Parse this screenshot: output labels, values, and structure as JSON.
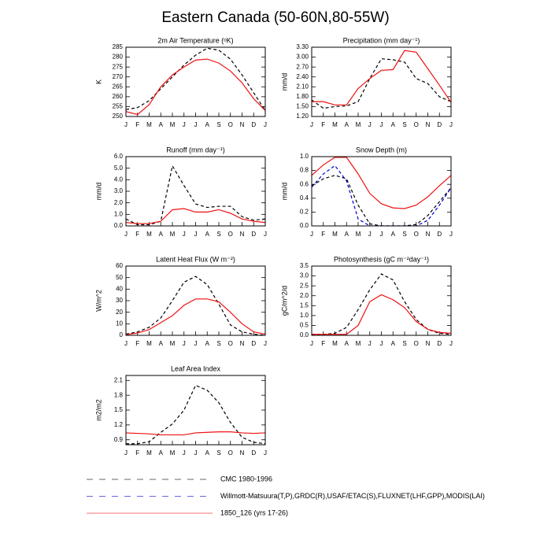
{
  "title": "Eastern Canada (50-60N,80-55W)",
  "legend": [
    {
      "name": "CMC 1980-1996",
      "color": "#000000",
      "dashed": true
    },
    {
      "name": "Willmott-Matsuura(T,P),GRDC(R),USAF/ETAC(S),FLUXNET(LHF,GPP),MODIS(LAI)",
      "color": "#0000cc",
      "dashed": true
    },
    {
      "name": "1850_126 (yrs 17-26)",
      "color": "#ee1111",
      "dashed": false
    }
  ],
  "chart_data": [
    {
      "type": "line",
      "title": "2m Air Temperature (ᵒK)",
      "y_label": "K",
      "categories": [
        "J",
        "F",
        "M",
        "A",
        "M",
        "J",
        "J",
        "A",
        "S",
        "O",
        "N",
        "D",
        "J"
      ],
      "ylim": [
        250,
        285
      ],
      "yticks": [
        250,
        255,
        260,
        265,
        270,
        275,
        280,
        285
      ],
      "series": [
        {
          "legend": 0,
          "values": [
            253.5,
            254.5,
            258,
            264,
            270,
            276,
            281,
            284.5,
            283.5,
            279,
            271,
            262,
            253
          ]
        },
        {
          "legend": 2,
          "values": [
            252.5,
            251,
            256,
            265,
            271,
            275,
            278.5,
            279,
            277,
            273,
            267,
            259,
            253
          ]
        }
      ]
    },
    {
      "type": "line",
      "title": "Precipitation (mm day⁻¹)",
      "y_label": "mm/d",
      "categories": [
        "J",
        "F",
        "M",
        "A",
        "M",
        "J",
        "J",
        "A",
        "S",
        "O",
        "N",
        "D",
        "J"
      ],
      "ylim": [
        1.2,
        3.3
      ],
      "yticks": [
        {
          "value": 1.2,
          "label": "1.20"
        },
        {
          "value": 1.5,
          "label": "1.50"
        },
        {
          "value": 1.8,
          "label": "1.80"
        },
        {
          "value": 2.1,
          "label": "2.10"
        },
        {
          "value": 2.4,
          "label": "2.40"
        },
        {
          "value": 2.7,
          "label": "2.70"
        },
        {
          "value": 3.0,
          "label": "3.00"
        },
        {
          "value": 3.3,
          "label": "3.30"
        }
      ],
      "series": [
        {
          "legend": 0,
          "values": [
            1.7,
            1.45,
            1.5,
            1.52,
            1.65,
            2.35,
            2.95,
            2.92,
            2.85,
            2.35,
            2.2,
            1.8,
            1.65
          ]
        },
        {
          "legend": 2,
          "values": [
            1.65,
            1.65,
            1.55,
            1.55,
            2.05,
            2.35,
            2.6,
            2.62,
            3.2,
            3.15,
            2.65,
            2.15,
            1.63
          ]
        }
      ]
    },
    {
      "type": "line",
      "title": "Runoff (mm day⁻¹)",
      "y_label": "mm/d",
      "categories": [
        "J",
        "F",
        "M",
        "A",
        "M",
        "J",
        "J",
        "A",
        "S",
        "O",
        "N",
        "D",
        "J"
      ],
      "ylim": [
        0,
        6
      ],
      "yticks": [
        {
          "value": 0,
          "label": "0.0"
        },
        {
          "value": 1,
          "label": "1.0"
        },
        {
          "value": 2,
          "label": "2.0"
        },
        {
          "value": 3,
          "label": "3.0"
        },
        {
          "value": 4,
          "label": "4.0"
        },
        {
          "value": 5,
          "label": "5.0"
        },
        {
          "value": 6,
          "label": "6.0"
        }
      ],
      "series": [
        {
          "legend": 0,
          "values": [
            0.6,
            0.1,
            0.1,
            0.4,
            5.2,
            3.5,
            1.9,
            1.6,
            1.7,
            1.7,
            0.8,
            0.5,
            0.6
          ]
        },
        {
          "legend": 2,
          "values": [
            0.3,
            0.2,
            0.2,
            0.4,
            1.4,
            1.5,
            1.2,
            1.2,
            1.4,
            1.1,
            0.6,
            0.4,
            0.3
          ]
        }
      ]
    },
    {
      "type": "line",
      "title": "Snow Depth (m)",
      "y_label": "mm/d",
      "categories": [
        "J",
        "F",
        "M",
        "A",
        "M",
        "J",
        "J",
        "A",
        "S",
        "O",
        "N",
        "D",
        "J"
      ],
      "ylim": [
        0,
        1
      ],
      "yticks": [
        {
          "value": 0,
          "label": "0.0"
        },
        {
          "value": 0.2,
          "label": "0.2"
        },
        {
          "value": 0.4,
          "label": "0.4"
        },
        {
          "value": 0.6,
          "label": "0.6"
        },
        {
          "value": 0.8,
          "label": "0.8"
        },
        {
          "value": 1,
          "label": "1.0"
        }
      ],
      "series": [
        {
          "legend": 0,
          "values": [
            0.58,
            0.68,
            0.73,
            0.68,
            0.3,
            0.03,
            0,
            0,
            0,
            0.02,
            0.15,
            0.35,
            0.55
          ]
        },
        {
          "legend": 1,
          "values": [
            0.56,
            0.75,
            0.87,
            0.65,
            0.1,
            0,
            0,
            0,
            0,
            0,
            0.08,
            0.3,
            0.55
          ]
        },
        {
          "legend": 2,
          "values": [
            0.73,
            0.88,
            0.99,
            0.99,
            0.75,
            0.47,
            0.32,
            0.26,
            0.25,
            0.3,
            0.42,
            0.58,
            0.73
          ]
        }
      ]
    },
    {
      "type": "line",
      "title": "Latent Heat Flux (W m⁻²)",
      "y_label": "W/m^2",
      "categories": [
        "J",
        "F",
        "M",
        "A",
        "M",
        "J",
        "J",
        "A",
        "S",
        "O",
        "N",
        "D",
        "J"
      ],
      "ylim": [
        0,
        60
      ],
      "yticks": [
        0,
        10,
        20,
        30,
        40,
        50,
        60
      ],
      "series": [
        {
          "legend": 0,
          "values": [
            1,
            3,
            7,
            15,
            30,
            46,
            51,
            44,
            27,
            9,
            3,
            1,
            0
          ]
        },
        {
          "legend": 2,
          "values": [
            0.5,
            2,
            5,
            11,
            17,
            26,
            31.5,
            31.5,
            29,
            20,
            10,
            3,
            1
          ]
        }
      ]
    },
    {
      "type": "line",
      "title": "Photosynthesis (gC m⁻²day⁻¹)",
      "y_label": "gC/m^2/d",
      "categories": [
        "J",
        "F",
        "M",
        "A",
        "M",
        "J",
        "J",
        "A",
        "S",
        "O",
        "N",
        "D",
        "J"
      ],
      "ylim": [
        0,
        3.5
      ],
      "yticks": [
        {
          "value": 0,
          "label": "0.0"
        },
        {
          "value": 0.5,
          "label": "0.5"
        },
        {
          "value": 1,
          "label": "1.0"
        },
        {
          "value": 1.5,
          "label": "1.5"
        },
        {
          "value": 2,
          "label": "2.0"
        },
        {
          "value": 2.5,
          "label": "2.5"
        },
        {
          "value": 3,
          "label": "3.0"
        },
        {
          "value": 3.5,
          "label": "3.5"
        }
      ],
      "series": [
        {
          "legend": 0,
          "values": [
            0.05,
            0.05,
            0.1,
            0.4,
            1.3,
            2.3,
            3.1,
            2.8,
            1.7,
            0.8,
            0.3,
            0.1,
            0.05
          ]
        },
        {
          "legend": 2,
          "values": [
            0.05,
            0.05,
            0.05,
            0.05,
            0.5,
            1.7,
            2.05,
            1.8,
            1.4,
            0.7,
            0.3,
            0.15,
            0.1
          ]
        }
      ]
    },
    {
      "type": "line",
      "title": "Leaf Area Index",
      "y_label": "m2/m2",
      "categories": [
        "J",
        "F",
        "M",
        "A",
        "M",
        "J",
        "J",
        "A",
        "S",
        "O",
        "N",
        "D",
        "J"
      ],
      "ylim": [
        0.8,
        2.2
      ],
      "yticks": [
        0.9,
        1.2,
        1.5,
        1.8,
        2.1
      ],
      "series": [
        {
          "legend": 0,
          "values": [
            0.82,
            0.82,
            0.86,
            1.05,
            1.22,
            1.5,
            2.0,
            1.9,
            1.65,
            1.25,
            0.95,
            0.85,
            0.82
          ]
        },
        {
          "legend": 2,
          "values": [
            1.04,
            1.03,
            1.02,
            1.0,
            1.0,
            1.0,
            1.04,
            1.05,
            1.06,
            1.06,
            1.04,
            1.03,
            1.04
          ]
        }
      ]
    }
  ]
}
